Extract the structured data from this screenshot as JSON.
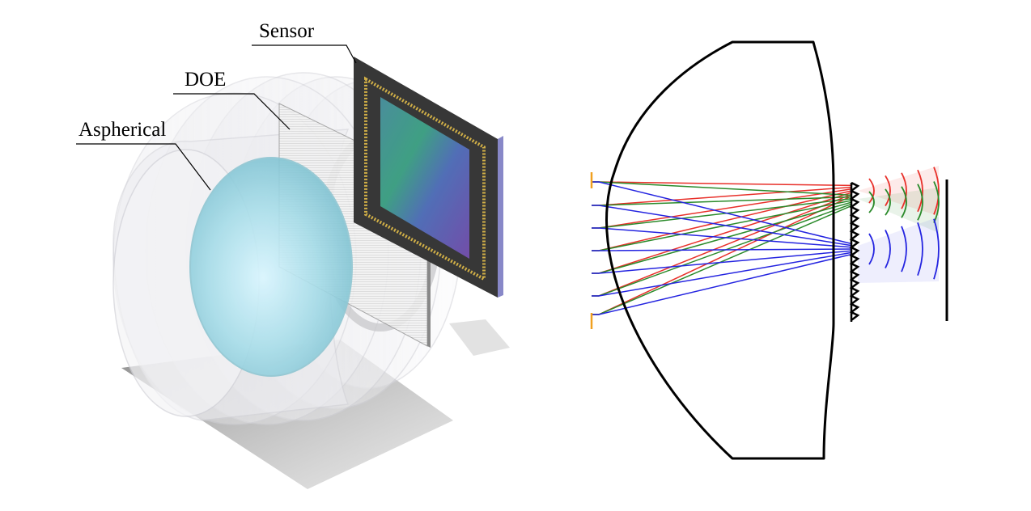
{
  "labels": {
    "sensor": "Sensor",
    "doe": "DOE",
    "aspherical": "Aspherical"
  },
  "colors": {
    "red_ray": "#e8302a",
    "green_ray": "#2a8a2a",
    "blue_ray": "#2424e0",
    "aperture_mark": "#f0a020",
    "lens_outline": "#000000",
    "aspherical_tint": "#a8dde8",
    "sensor_die": "#1a1a1a",
    "sensor_gold": "#c9a227"
  }
}
